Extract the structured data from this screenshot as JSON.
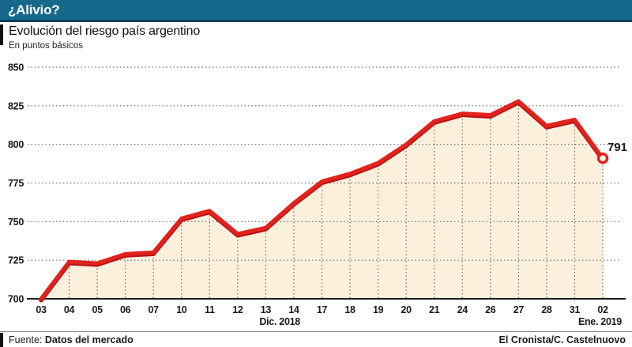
{
  "header": {
    "title": "¿Alivio?"
  },
  "chart_data": {
    "type": "line",
    "title": "Evolución del riesgo país argentino",
    "ylabel": "En puntos básicos",
    "categories": [
      "03",
      "04",
      "05",
      "06",
      "07",
      "10",
      "11",
      "12",
      "13",
      "14",
      "17",
      "18",
      "19",
      "20",
      "21",
      "24",
      "26",
      "27",
      "28",
      "31",
      "02"
    ],
    "values": [
      700,
      724,
      723,
      729,
      730,
      752,
      757,
      742,
      746,
      762,
      776,
      781,
      788,
      800,
      815,
      820,
      819,
      828,
      812,
      816,
      791
    ],
    "period_labels": [
      {
        "text": "Dic. 2018",
        "x_index": 8.5
      },
      {
        "text": "Ene. 2019",
        "x_index": 19.9
      }
    ],
    "ylim": [
      700,
      850
    ],
    "yticks": [
      700,
      725,
      750,
      775,
      800,
      825,
      850
    ],
    "grid": "dotted",
    "legend": "none",
    "end_label": "791",
    "colors": {
      "line": "#e2231c",
      "line_shadow": "#b81218",
      "area_fill": "#faf0dc",
      "grid": "#6e6e6e",
      "axis": "#1a1a1a",
      "endpoint_fill": "#ffffff",
      "header_bg": "#17698c",
      "header_border": "#0c3c5b"
    }
  },
  "footer": {
    "source_label": "Fuente:",
    "source": "Datos del mercado",
    "credit": "El Cronista/C. Castelnuovo"
  }
}
